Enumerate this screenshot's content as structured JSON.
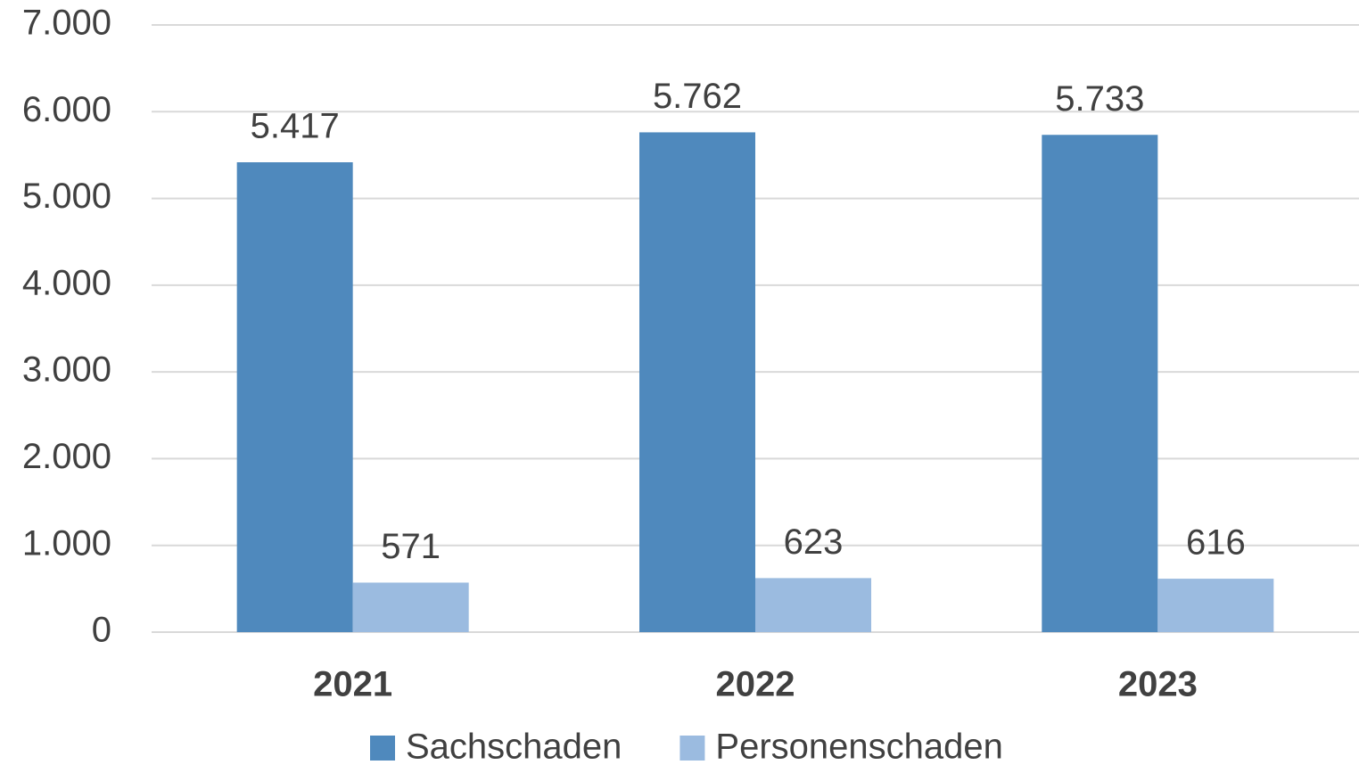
{
  "chart_data": {
    "type": "bar",
    "categories": [
      "2021",
      "2022",
      "2023"
    ],
    "series": [
      {
        "name": "Sachschaden",
        "color": "#4f89bd",
        "values": [
          5417,
          5762,
          5733
        ],
        "value_labels": [
          "5.417",
          "5.762",
          "5.733"
        ]
      },
      {
        "name": "Personenschaden",
        "color": "#9bbbe0",
        "values": [
          571,
          623,
          616
        ],
        "value_labels": [
          "571",
          "623",
          "616"
        ]
      }
    ],
    "ylim": [
      0,
      7000
    ],
    "yticks": [
      0,
      {
        "value": 1000,
        "label": "1.000"
      },
      {
        "value": 2000,
        "label": "2.000"
      },
      {
        "value": 3000,
        "label": "3.000"
      },
      {
        "value": 4000,
        "label": "4.000"
      },
      {
        "value": 5000,
        "label": "5.000"
      },
      {
        "value": 6000,
        "label": "6.000"
      },
      {
        "value": 7000,
        "label": "7.000"
      }
    ],
    "grid": true,
    "legend": "bottom"
  }
}
